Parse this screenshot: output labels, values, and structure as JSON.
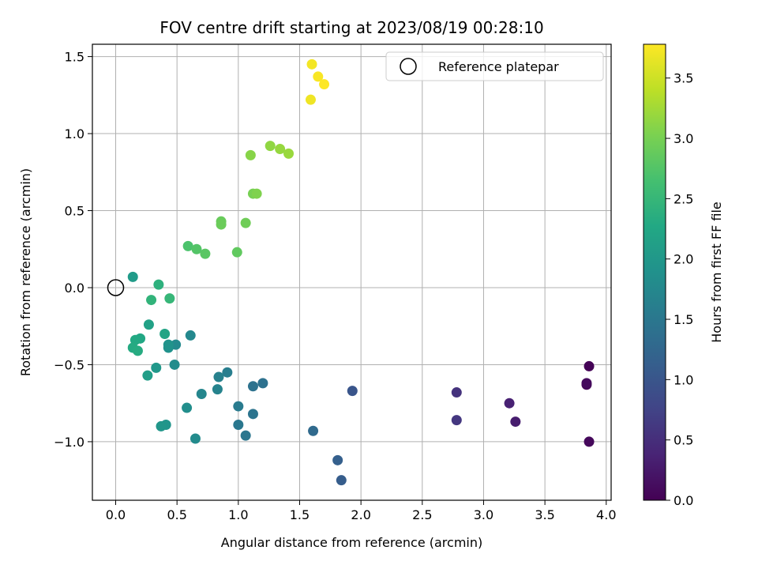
{
  "chart_data": {
    "type": "scatter",
    "title": "FOV centre drift starting at 2023/08/19 00:28:10",
    "xlabel": "Angular distance from reference (arcmin)",
    "ylabel": "Rotation from reference (arcmin)",
    "xlim": [
      -0.19,
      4.04
    ],
    "ylim": [
      -1.38,
      1.58
    ],
    "xticks": [
      0.0,
      0.5,
      1.0,
      1.5,
      2.0,
      2.5,
      3.0,
      3.5,
      4.0
    ],
    "xtick_labels": [
      "0.0",
      "0.5",
      "1.0",
      "1.5",
      "2.0",
      "2.5",
      "3.0",
      "3.5",
      "4.0"
    ],
    "yticks": [
      -1.0,
      -0.5,
      0.0,
      0.5,
      1.0,
      1.5
    ],
    "ytick_labels": [
      "−1.0",
      "−0.5",
      "0.0",
      "0.5",
      "1.0",
      "1.5"
    ],
    "grid": true,
    "colormap": "viridis",
    "colorbar": {
      "label": "Hours from first FF file",
      "range": [
        0.0,
        3.78
      ],
      "ticks": [
        0.0,
        0.5,
        1.0,
        1.5,
        2.0,
        2.5,
        3.0,
        3.5
      ],
      "tick_labels": [
        "0.0",
        "0.5",
        "1.0",
        "1.5",
        "2.0",
        "2.5",
        "3.0",
        "3.5"
      ]
    },
    "legend": {
      "placement": "upper-right",
      "label": "Reference platepar"
    },
    "reference": {
      "x": 0.0,
      "y": 0.0
    },
    "points": [
      {
        "x": 3.86,
        "y": -0.51,
        "c": 0.02
      },
      {
        "x": 3.84,
        "y": -0.63,
        "c": 0.05
      },
      {
        "x": 3.86,
        "y": -1.0,
        "c": 0.08
      },
      {
        "x": 3.84,
        "y": -0.62,
        "c": 0.1
      },
      {
        "x": 3.26,
        "y": -0.87,
        "c": 0.3
      },
      {
        "x": 3.21,
        "y": -0.75,
        "c": 0.35
      },
      {
        "x": 2.78,
        "y": -0.68,
        "c": 0.55
      },
      {
        "x": 2.78,
        "y": -0.86,
        "c": 0.6
      },
      {
        "x": 1.93,
        "y": -0.67,
        "c": 1.0
      },
      {
        "x": 1.84,
        "y": -1.25,
        "c": 1.1
      },
      {
        "x": 1.81,
        "y": -1.12,
        "c": 1.15
      },
      {
        "x": 1.61,
        "y": -0.93,
        "c": 1.3
      },
      {
        "x": 1.2,
        "y": -0.62,
        "c": 1.4
      },
      {
        "x": 1.12,
        "y": -0.64,
        "c": 1.42
      },
      {
        "x": 1.12,
        "y": -0.82,
        "c": 1.45
      },
      {
        "x": 1.06,
        "y": -0.96,
        "c": 1.48
      },
      {
        "x": 1.0,
        "y": -0.89,
        "c": 1.5
      },
      {
        "x": 1.0,
        "y": -0.77,
        "c": 1.55
      },
      {
        "x": 0.91,
        "y": -0.55,
        "c": 1.6
      },
      {
        "x": 0.84,
        "y": -0.58,
        "c": 1.65
      },
      {
        "x": 0.83,
        "y": -0.66,
        "c": 1.68
      },
      {
        "x": 0.7,
        "y": -0.69,
        "c": 1.72
      },
      {
        "x": 0.65,
        "y": -0.98,
        "c": 1.8
      },
      {
        "x": 0.58,
        "y": -0.78,
        "c": 1.85
      },
      {
        "x": 0.61,
        "y": -0.31,
        "c": 1.75
      },
      {
        "x": 0.49,
        "y": -0.37,
        "c": 1.78
      },
      {
        "x": 0.48,
        "y": -0.5,
        "c": 1.82
      },
      {
        "x": 0.43,
        "y": -0.39,
        "c": 1.9
      },
      {
        "x": 0.43,
        "y": -0.37,
        "c": 1.92
      },
      {
        "x": 0.41,
        "y": -0.89,
        "c": 1.95
      },
      {
        "x": 0.37,
        "y": -0.9,
        "c": 1.98
      },
      {
        "x": 0.33,
        "y": -0.52,
        "c": 2.0
      },
      {
        "x": 0.26,
        "y": -0.57,
        "c": 2.1
      },
      {
        "x": 0.27,
        "y": -0.24,
        "c": 2.15
      },
      {
        "x": 0.4,
        "y": -0.3,
        "c": 2.2
      },
      {
        "x": 0.14,
        "y": 0.07,
        "c": 2.05
      },
      {
        "x": 0.2,
        "y": -0.33,
        "c": 2.25
      },
      {
        "x": 0.16,
        "y": -0.34,
        "c": 2.28
      },
      {
        "x": 0.14,
        "y": -0.39,
        "c": 2.3
      },
      {
        "x": 0.18,
        "y": -0.41,
        "c": 2.32
      },
      {
        "x": 0.35,
        "y": 0.02,
        "c": 2.4
      },
      {
        "x": 0.29,
        "y": -0.08,
        "c": 2.45
      },
      {
        "x": 0.44,
        "y": -0.07,
        "c": 2.5
      },
      {
        "x": 0.59,
        "y": 0.27,
        "c": 2.7
      },
      {
        "x": 0.66,
        "y": 0.25,
        "c": 2.75
      },
      {
        "x": 0.73,
        "y": 0.22,
        "c": 2.8
      },
      {
        "x": 0.99,
        "y": 0.23,
        "c": 2.85
      },
      {
        "x": 0.86,
        "y": 0.43,
        "c": 2.9
      },
      {
        "x": 0.86,
        "y": 0.41,
        "c": 2.92
      },
      {
        "x": 1.06,
        "y": 0.42,
        "c": 2.95
      },
      {
        "x": 1.12,
        "y": 0.61,
        "c": 3.0
      },
      {
        "x": 1.15,
        "y": 0.61,
        "c": 3.05
      },
      {
        "x": 1.1,
        "y": 0.86,
        "c": 3.1
      },
      {
        "x": 1.26,
        "y": 0.92,
        "c": 3.15
      },
      {
        "x": 1.34,
        "y": 0.9,
        "c": 3.18
      },
      {
        "x": 1.41,
        "y": 0.87,
        "c": 3.2
      },
      {
        "x": 1.59,
        "y": 1.22,
        "c": 3.7
      },
      {
        "x": 1.6,
        "y": 1.45,
        "c": 3.72
      },
      {
        "x": 1.65,
        "y": 1.37,
        "c": 3.75
      },
      {
        "x": 1.7,
        "y": 1.32,
        "c": 3.78
      }
    ]
  }
}
